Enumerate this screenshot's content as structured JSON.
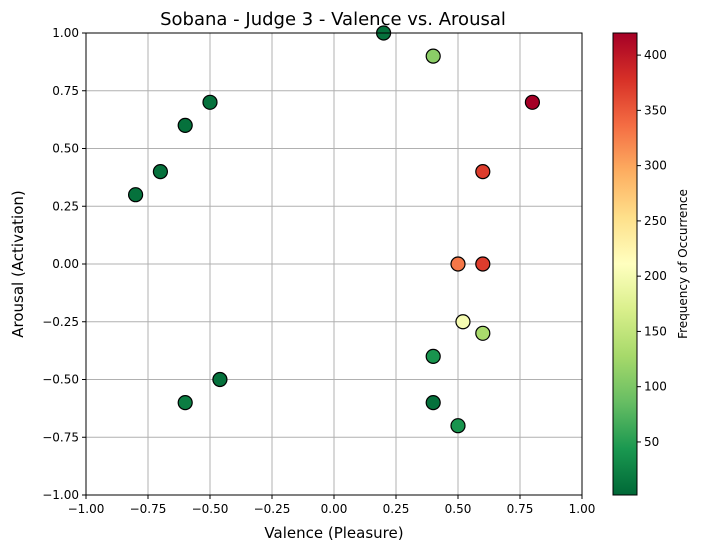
{
  "chart_data": {
    "type": "scatter",
    "title": "Sobana - Judge 3 - Valence vs. Arousal",
    "xlabel": "Valence (Pleasure)",
    "ylabel": "Arousal (Activation)",
    "xlim": [
      -1.0,
      1.0
    ],
    "ylim": [
      -1.0,
      1.0
    ],
    "xticks": [
      "−1.00",
      "−0.75",
      "−0.50",
      "−0.25",
      "0.00",
      "0.25",
      "0.50",
      "0.75",
      "1.00"
    ],
    "yticks": [
      "−1.00",
      "−0.75",
      "−0.50",
      "−0.25",
      "0.00",
      "0.25",
      "0.50",
      "0.75",
      "1.00"
    ],
    "grid": true,
    "colormap": "RdYlGn_r",
    "colorbar": {
      "label": "Frequency of Occurrence",
      "range": [
        2,
        420
      ],
      "ticks": [
        "50",
        "100",
        "150",
        "200",
        "250",
        "300",
        "350",
        "400"
      ]
    },
    "points": [
      {
        "x": 0.2,
        "y": 1.0,
        "freq": 10
      },
      {
        "x": 0.4,
        "y": 0.9,
        "freq": 110
      },
      {
        "x": -0.5,
        "y": 0.7,
        "freq": 10
      },
      {
        "x": 0.8,
        "y": 0.7,
        "freq": 420
      },
      {
        "x": -0.6,
        "y": 0.6,
        "freq": 10
      },
      {
        "x": -0.7,
        "y": 0.4,
        "freq": 10
      },
      {
        "x": 0.6,
        "y": 0.4,
        "freq": 370
      },
      {
        "x": -0.8,
        "y": 0.3,
        "freq": 10
      },
      {
        "x": 0.5,
        "y": 0.0,
        "freq": 330
      },
      {
        "x": 0.6,
        "y": 0.0,
        "freq": 370
      },
      {
        "x": 0.52,
        "y": -0.25,
        "freq": 200
      },
      {
        "x": 0.6,
        "y": -0.3,
        "freq": 130
      },
      {
        "x": 0.4,
        "y": -0.4,
        "freq": 40
      },
      {
        "x": -0.46,
        "y": -0.5,
        "freq": 10
      },
      {
        "x": -0.6,
        "y": -0.6,
        "freq": 20
      },
      {
        "x": 0.4,
        "y": -0.6,
        "freq": 10
      },
      {
        "x": 0.5,
        "y": -0.7,
        "freq": 40
      }
    ],
    "colors": {
      "marker_edge": "#000000",
      "grid": "#b0b0b0"
    }
  }
}
